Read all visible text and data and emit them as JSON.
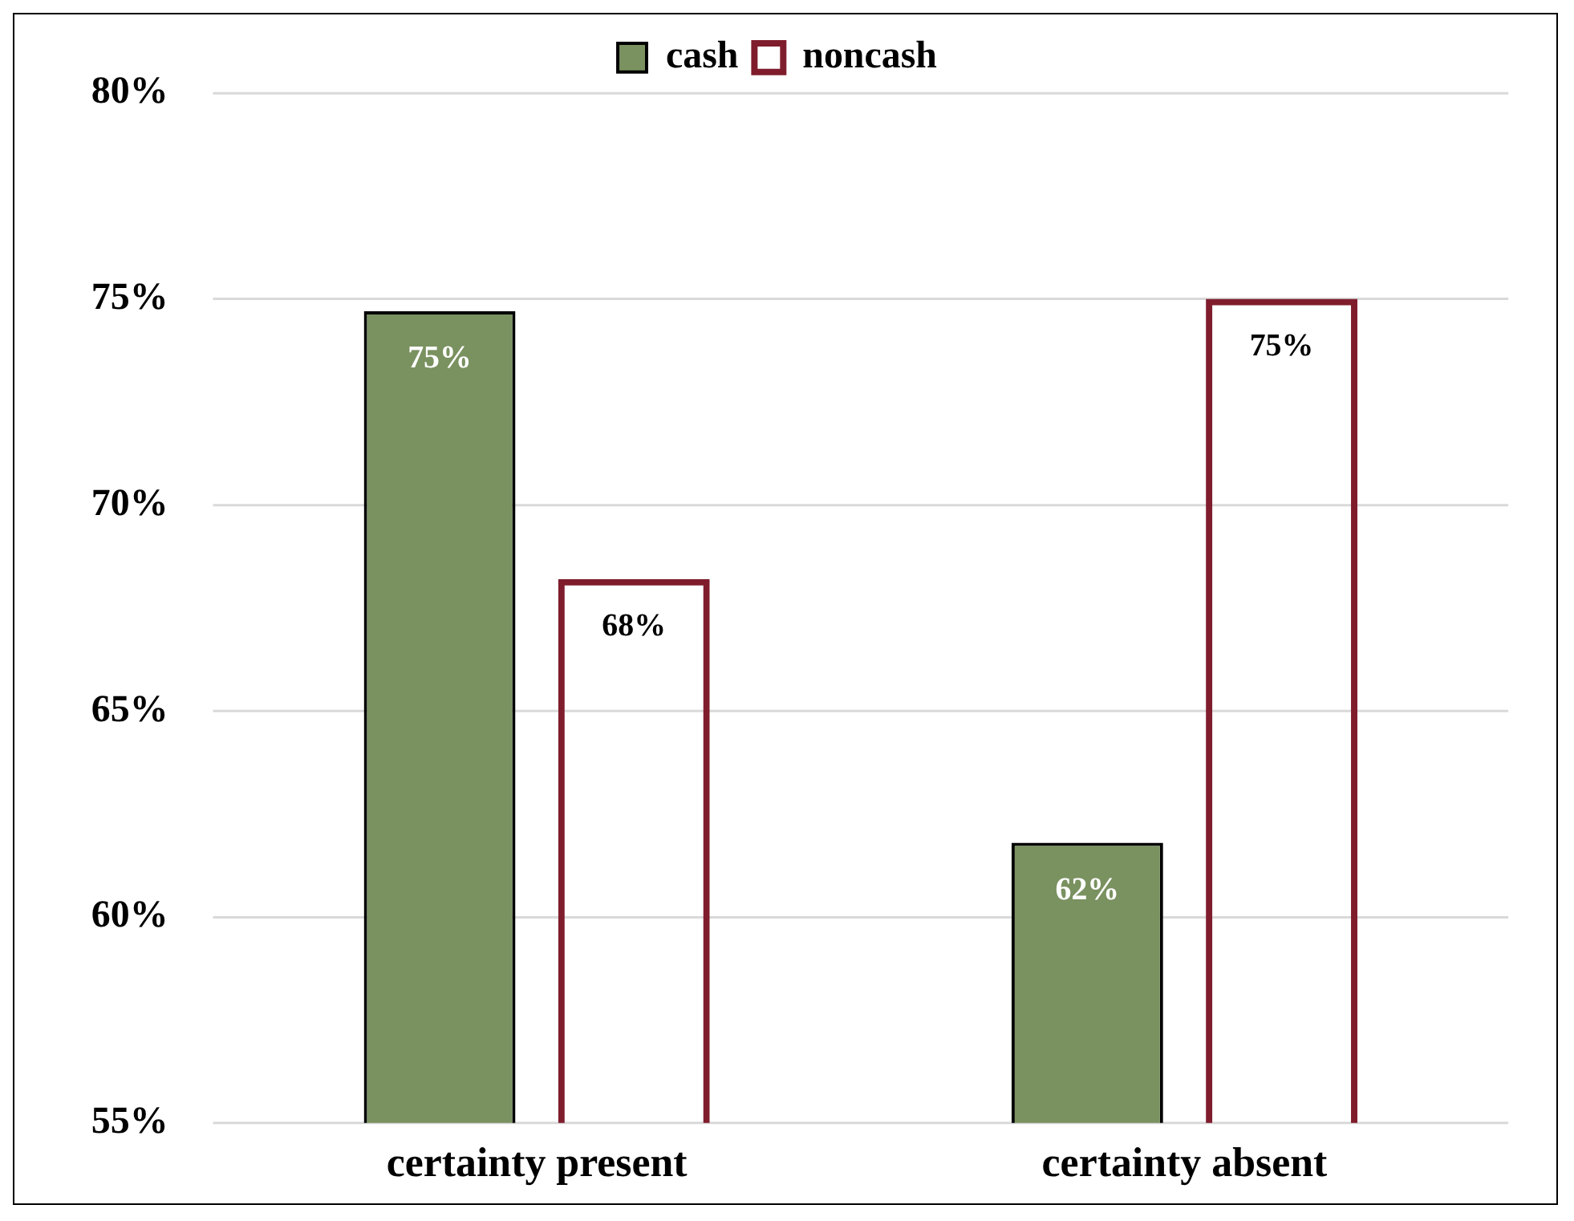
{
  "chart_data": {
    "type": "bar",
    "categories": [
      "certainty present",
      "certainty absent"
    ],
    "series": [
      {
        "name": "cash",
        "color": "#7a9160",
        "values": [
          74.7,
          61.8
        ],
        "value_labels": [
          "75%",
          "62%"
        ]
      },
      {
        "name": "noncash",
        "color": "#7f1d2d",
        "values": [
          68.2,
          75.0
        ],
        "value_labels": [
          "68%",
          "75%"
        ]
      }
    ],
    "ylim": [
      55,
      80
    ],
    "yticks": [
      {
        "value": 55,
        "label": "55%"
      },
      {
        "value": 60,
        "label": "60%"
      },
      {
        "value": 65,
        "label": "65%"
      },
      {
        "value": 70,
        "label": "70%"
      },
      {
        "value": 75,
        "label": "75%"
      },
      {
        "value": 80,
        "label": "80%"
      }
    ],
    "grid": "y",
    "legend": "top"
  }
}
